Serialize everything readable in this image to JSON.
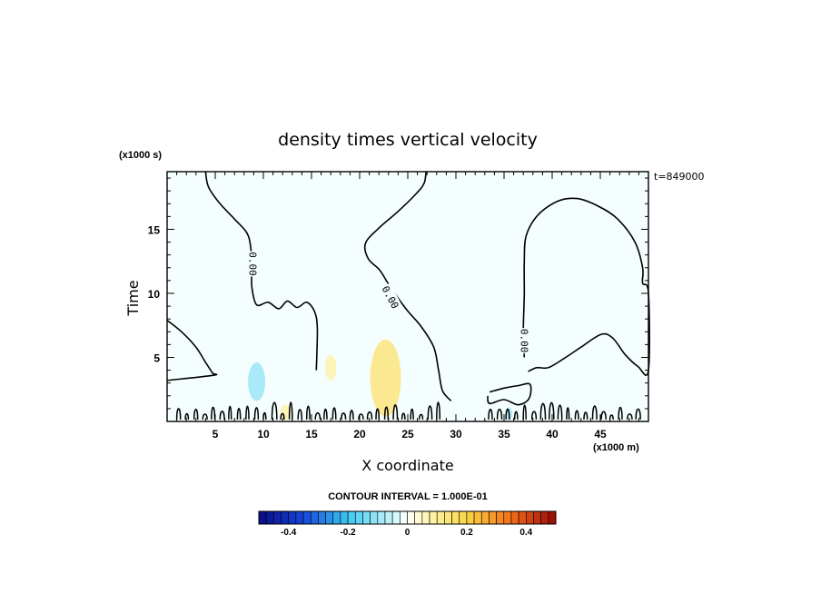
{
  "chart_data": {
    "type": "contour",
    "title": "density times vertical velocity",
    "xlabel": "X coordinate",
    "ylabel": "Time",
    "x_unit": "(x1000 m)",
    "y_unit": "(x1000 s)",
    "timestamp": "t=849000",
    "xlim": [
      0,
      50
    ],
    "ylim": [
      0,
      19.5
    ],
    "x_ticks": [
      5,
      10,
      15,
      20,
      25,
      30,
      35,
      40,
      45
    ],
    "y_ticks": [
      5,
      10,
      15
    ],
    "contour_interval_text": "CONTOUR INTERVAL = 1.000E-01",
    "contour_labels": [
      "0.00",
      "0.00",
      "0.00"
    ],
    "zero_contours": [
      {
        "name": "left",
        "points": [
          [
            0,
            7.9
          ],
          [
            1.5,
            7
          ],
          [
            3,
            5.8
          ],
          [
            4,
            4.6
          ],
          [
            4.7,
            3.8
          ],
          [
            4.8,
            3.6
          ],
          [
            0,
            3.2
          ]
        ]
      },
      {
        "name": "upper-left",
        "points": [
          [
            4,
            19.5
          ],
          [
            4.3,
            18.3
          ],
          [
            5.5,
            17
          ],
          [
            7,
            15.8
          ],
          [
            8.3,
            14.7
          ],
          [
            8.7,
            13.5
          ],
          [
            8.8,
            12
          ],
          [
            8.8,
            10.5
          ],
          [
            9.3,
            9.1
          ],
          [
            10.5,
            9.3
          ],
          [
            11.6,
            8.8
          ],
          [
            12.5,
            9.4
          ],
          [
            13.5,
            8.9
          ],
          [
            14.5,
            9.3
          ],
          [
            15.3,
            8.6
          ],
          [
            15.6,
            7.3
          ],
          [
            15.5,
            4
          ]
        ]
      },
      {
        "name": "middle",
        "points": [
          [
            26.9,
            19.5
          ],
          [
            26.7,
            18.6
          ],
          [
            25.9,
            17.8
          ],
          [
            24,
            16.4
          ],
          [
            22,
            15.1
          ],
          [
            20.6,
            13.9
          ],
          [
            20.9,
            12.7
          ],
          [
            22.1,
            11.8
          ],
          [
            23.1,
            10.6
          ],
          [
            24.8,
            8.8
          ],
          [
            26.4,
            7.4
          ],
          [
            27.7,
            5.8
          ],
          [
            28.2,
            4
          ],
          [
            28.6,
            2.4
          ],
          [
            29.5,
            1.6
          ]
        ]
      },
      {
        "name": "right-loop",
        "points": [
          [
            37.5,
            3.9
          ],
          [
            38.4,
            4.2
          ],
          [
            39.6,
            4.2
          ],
          [
            41.2,
            4.9
          ],
          [
            43,
            5.8
          ],
          [
            45.1,
            6.8
          ],
          [
            46.3,
            6.5
          ],
          [
            47.6,
            5.2
          ],
          [
            48.9,
            4.3
          ],
          [
            50,
            4
          ],
          [
            50,
            10
          ],
          [
            49.4,
            10.8
          ],
          [
            49.4,
            12
          ],
          [
            48.6,
            14
          ],
          [
            46.8,
            15.8
          ],
          [
            44.8,
            16.8
          ],
          [
            42.6,
            17.4
          ],
          [
            40.6,
            17.2
          ],
          [
            38.5,
            16.1
          ],
          [
            37.3,
            14.5
          ],
          [
            37.1,
            12.5
          ],
          [
            37.1,
            10
          ],
          [
            37,
            7
          ],
          [
            37.1,
            5
          ]
        ]
      },
      {
        "name": "small-loop",
        "points": [
          [
            33.5,
            2.3
          ],
          [
            35,
            2.6
          ],
          [
            36.5,
            2.8
          ],
          [
            37.7,
            2.9
          ],
          [
            37.6,
            1.8
          ],
          [
            36.5,
            1.3
          ],
          [
            35,
            1.7
          ],
          [
            33.5,
            1.4
          ],
          [
            33.3,
            2
          ]
        ]
      }
    ],
    "anomalies": [
      {
        "x": 9.3,
        "y": 3.1,
        "rx": 0.9,
        "ry": 1.5,
        "value": -0.05
      },
      {
        "x": 22.7,
        "y": 3.4,
        "rx": 1.6,
        "ry": 3.0,
        "value": 0.07
      },
      {
        "x": 17,
        "y": 4.2,
        "rx": 0.6,
        "ry": 1.0,
        "value": 0.04
      },
      {
        "x": 12.3,
        "y": 0.7,
        "rx": 0.6,
        "ry": 0.6,
        "value": 0.04
      },
      {
        "x": 35.5,
        "y": 0.6,
        "rx": 0.4,
        "ry": 0.5,
        "value": -0.04
      }
    ],
    "background_value": -0.02,
    "colorbar": {
      "min": -0.5,
      "max": 0.5,
      "step": 0.025,
      "tick_values": [
        -0.4,
        -0.2,
        0,
        0.2,
        0.4
      ],
      "tick_labels": [
        "-0.4",
        "-0.2",
        "0",
        "0.2",
        "0.4"
      ]
    }
  }
}
